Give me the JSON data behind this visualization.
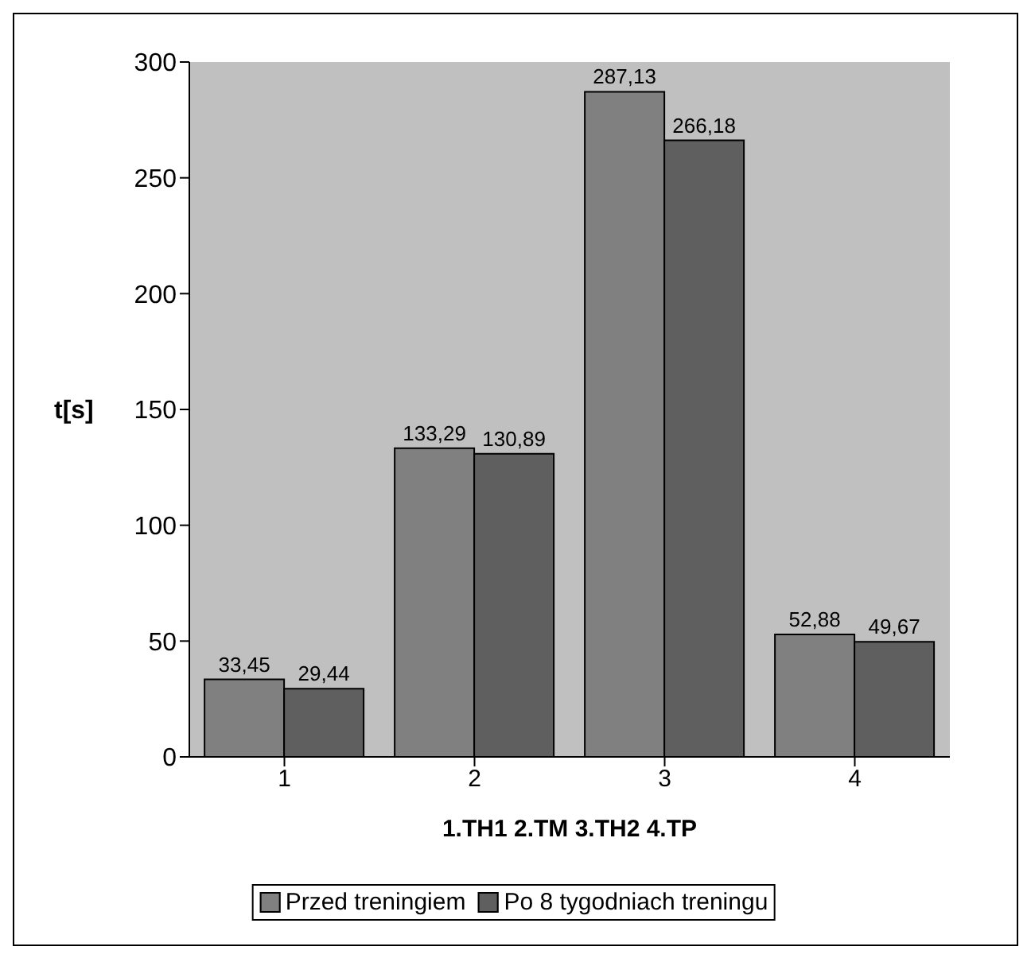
{
  "chart_data": {
    "type": "bar",
    "xlabel": "1.TH1  2.TM  3.TH2  4.TP",
    "ylabel": "t[s]",
    "categories": [
      "1",
      "2",
      "3",
      "4"
    ],
    "series": [
      {
        "name": "Przed treningiem",
        "color": "#808080",
        "values": [
          33.45,
          133.29,
          287.13,
          52.88
        ],
        "value_labels": [
          "33,45",
          "133,29",
          "287,13",
          "52,88"
        ]
      },
      {
        "name": "Po 8 tygodniach treningu",
        "color": "#5f5f5f",
        "values": [
          29.44,
          130.89,
          266.18,
          49.67
        ],
        "value_labels": [
          "29,44",
          "130,89",
          "266,18",
          "49,67"
        ]
      }
    ],
    "ylim": [
      0,
      300
    ],
    "yticks": [
      0,
      50,
      100,
      150,
      200,
      250,
      300
    ],
    "grid": false,
    "legend": "bottom"
  }
}
